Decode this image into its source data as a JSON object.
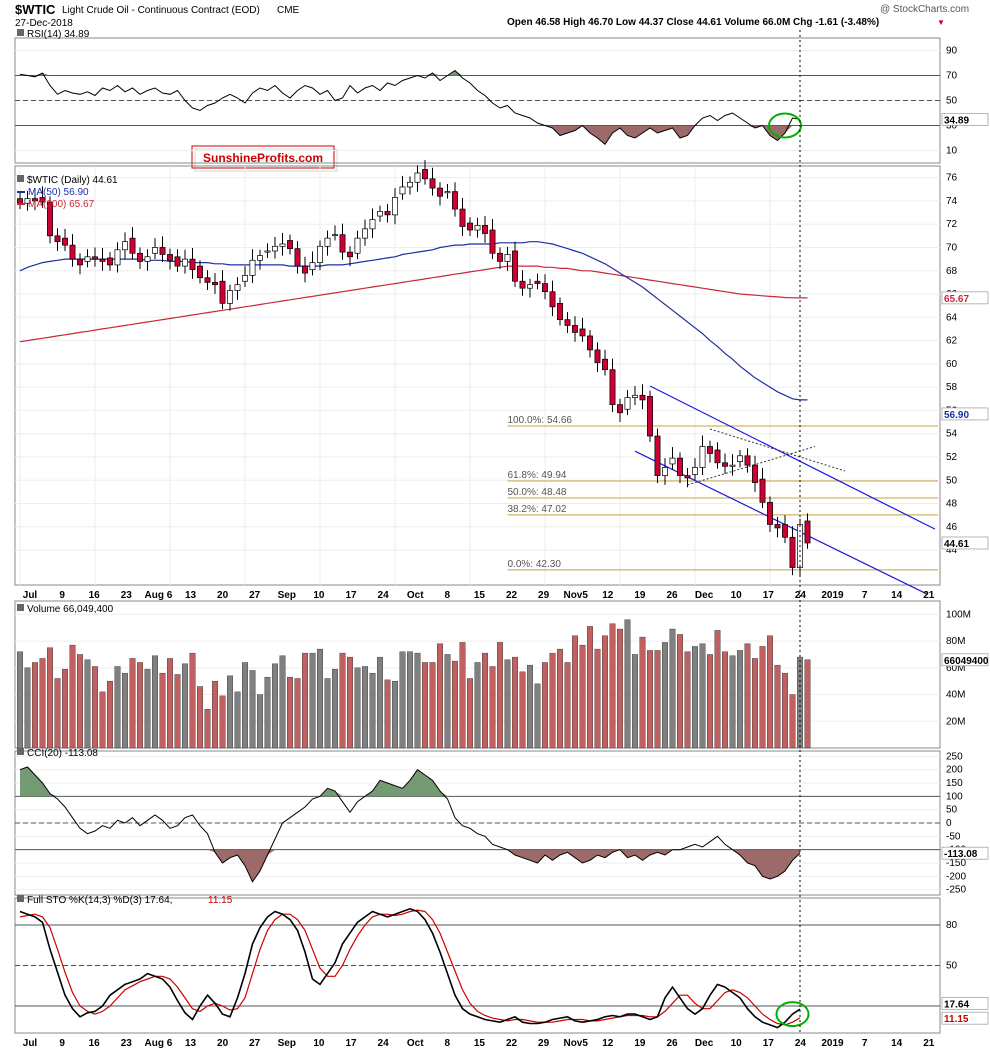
{
  "header": {
    "ticker": "$WTIC",
    "name": "Light Crude Oil - Continuous Contract (EOD)",
    "exchange": "CME",
    "date": "27-Dec-2018",
    "ohlc_text": "Open 46.58  High 46.70  Low 44.37  Close 44.61  Volume 66.0M  Chg -1.61 (-3.48%)",
    "watermark": "@ StockCharts.com"
  },
  "logo": {
    "text": "SunshineProfits.com",
    "color": "#cc0000"
  },
  "colors": {
    "up": "#ffffff",
    "down": "#cc0033",
    "vol_up": "#808080",
    "vol_down": "#c06060",
    "ma50": "#1f2fa0",
    "ma200": "#c8283c",
    "fib": "#c8a040",
    "channel": "#1a1adf",
    "positive_fill": "#5c8a5c",
    "negative_fill": "#8c5050",
    "highlight": "#00b000"
  },
  "chart_data": [
    {
      "panel": "rsi",
      "type": "line",
      "title": "RSI(14) 34.89",
      "ylim": [
        0,
        100
      ],
      "ticks": [
        10,
        30,
        50,
        70,
        90
      ],
      "reference_lines": [
        30,
        50,
        70
      ],
      "last_value_label": "34.89",
      "values": [
        71,
        70,
        69,
        72,
        62,
        55,
        58,
        56,
        55,
        57,
        54,
        60,
        58,
        62,
        57,
        60,
        55,
        58,
        60,
        56,
        55,
        58,
        50,
        44,
        42,
        46,
        48,
        52,
        55,
        52,
        48,
        56,
        60,
        58,
        62,
        56,
        52,
        58,
        62,
        60,
        55,
        58,
        50,
        52,
        62,
        56,
        60,
        62,
        58,
        64,
        62,
        66,
        68,
        70,
        68,
        72,
        66,
        70,
        74,
        68,
        64,
        58,
        54,
        48,
        44,
        46,
        40,
        38,
        36,
        32,
        30,
        28,
        22,
        24,
        26,
        30,
        24,
        20,
        15,
        24,
        28,
        22,
        20,
        24,
        28,
        24,
        26,
        28,
        20,
        22,
        30,
        36,
        38,
        34,
        38,
        40,
        36,
        32,
        28,
        30,
        22,
        18,
        24,
        36,
        34.89
      ]
    },
    {
      "panel": "price",
      "type": "candlestick",
      "title": "$WTIC (Daily) 44.61",
      "ylim": [
        41,
        77
      ],
      "ticks": [
        44,
        46,
        48,
        50,
        52,
        54,
        56,
        58,
        60,
        62,
        64,
        66,
        68,
        70,
        72,
        74,
        76
      ],
      "last_value_label": "44.61",
      "legend": [
        {
          "name": "MA(50) 56.90",
          "color": "#1f2fa0",
          "last_label": "56.90"
        },
        {
          "name": "MA(200) 65.67",
          "color": "#c8283c",
          "last_label": "65.67"
        }
      ],
      "fib_levels": [
        {
          "label": "100.0%: 54.66",
          "value": 54.66
        },
        {
          "label": "61.8%: 49.94",
          "value": 49.94
        },
        {
          "label": "50.0%: 48.48",
          "value": 48.48
        },
        {
          "label": "38.2%: 47.02",
          "value": 47.02
        },
        {
          "label": "0.0%: 42.30",
          "value": 42.3
        }
      ],
      "close": [
        73.8,
        74.2,
        74.0,
        73.9,
        71.0,
        70.5,
        70.2,
        69.0,
        68.5,
        69.2,
        69.0,
        68.8,
        68.5,
        69.8,
        70.5,
        69.5,
        68.8,
        69.2,
        70.0,
        69.4,
        68.9,
        68.4,
        69.0,
        68.1,
        67.4,
        67.0,
        66.8,
        65.2,
        66.3,
        66.8,
        67.6,
        68.9,
        69.3,
        69.7,
        70.1,
        70.3,
        69.9,
        68.4,
        67.8,
        68.7,
        70.1,
        70.8,
        71.1,
        69.6,
        69.2,
        70.8,
        71.6,
        72.4,
        73.1,
        72.8,
        74.3,
        75.2,
        75.6,
        76.4,
        75.9,
        75.1,
        74.4,
        74.8,
        73.3,
        71.8,
        71.5,
        71.9,
        71.2,
        69.5,
        68.8,
        69.4,
        67.1,
        66.5,
        66.8,
        66.9,
        66.2,
        64.9,
        63.8,
        63.3,
        62.7,
        62.4,
        61.2,
        60.1,
        59.5,
        56.5,
        55.8,
        57.1,
        57.3,
        56.9,
        53.8,
        50.4,
        51.1,
        51.9,
        50.4,
        50.2,
        51.1,
        52.9,
        52.3,
        51.5,
        51.2,
        51.3,
        52.1,
        51.3,
        49.8,
        48.1,
        46.2,
        45.9,
        45.1,
        42.5,
        46.2,
        44.61
      ],
      "ma50": [
        68.0,
        68.3,
        68.5,
        68.7,
        68.8,
        68.9,
        69.0,
        69.0,
        69.0,
        69.0,
        69.0,
        69.0,
        69.0,
        69.0,
        69.0,
        69.0,
        69.0,
        68.9,
        68.9,
        68.9,
        68.8,
        68.8,
        68.8,
        68.7,
        68.7,
        68.7,
        68.6,
        68.6,
        68.5,
        68.5,
        68.5,
        68.5,
        68.5,
        68.5,
        68.5,
        68.5,
        68.4,
        68.4,
        68.4,
        68.4,
        68.4,
        68.5,
        68.5,
        68.5,
        68.6,
        68.7,
        68.8,
        68.9,
        69.0,
        69.1,
        69.2,
        69.4,
        69.5,
        69.6,
        69.7,
        69.8,
        70.0,
        70.1,
        70.2,
        70.2,
        70.3,
        70.3,
        70.3,
        70.3,
        70.4,
        70.4,
        70.4,
        70.4,
        70.5,
        70.5,
        70.4,
        70.3,
        70.1,
        69.9,
        69.7,
        69.5,
        69.2,
        68.9,
        68.6,
        68.2,
        67.8,
        67.4,
        67.0,
        66.6,
        66.1,
        65.6,
        65.1,
        64.6,
        64.1,
        63.6,
        63.1,
        62.6,
        62.0,
        61.5,
        60.9,
        60.4,
        59.8,
        59.3,
        58.8,
        58.4,
        58.0,
        57.6,
        57.3,
        57.0,
        56.9,
        56.9
      ],
      "ma200": [
        61.9,
        62.0,
        62.1,
        62.2,
        62.3,
        62.4,
        62.5,
        62.6,
        62.7,
        62.8,
        62.9,
        63.0,
        63.1,
        63.2,
        63.3,
        63.4,
        63.5,
        63.6,
        63.7,
        63.8,
        63.9,
        64.0,
        64.1,
        64.2,
        64.3,
        64.4,
        64.5,
        64.6,
        64.7,
        64.8,
        64.9,
        65.0,
        65.1,
        65.2,
        65.3,
        65.4,
        65.5,
        65.6,
        65.7,
        65.8,
        65.9,
        66.0,
        66.1,
        66.2,
        66.3,
        66.4,
        66.5,
        66.6,
        66.7,
        66.8,
        66.9,
        67.0,
        67.1,
        67.2,
        67.3,
        67.4,
        67.5,
        67.6,
        67.7,
        67.8,
        67.9,
        68.0,
        68.1,
        68.2,
        68.3,
        68.4,
        68.4,
        68.4,
        68.4,
        68.4,
        68.3,
        68.3,
        68.2,
        68.2,
        68.1,
        68.0,
        68.0,
        67.9,
        67.8,
        67.7,
        67.6,
        67.5,
        67.4,
        67.3,
        67.2,
        67.1,
        67.0,
        66.9,
        66.8,
        66.7,
        66.6,
        66.5,
        66.4,
        66.3,
        66.2,
        66.1,
        66.0,
        65.95,
        65.9,
        65.85,
        65.8,
        65.75,
        65.7,
        65.68,
        65.67,
        65.67
      ]
    },
    {
      "panel": "volume",
      "type": "bar",
      "title": "Volume 66,049,400",
      "ylim": [
        0,
        110
      ],
      "unit": "M",
      "ticks": [
        20,
        40,
        60,
        80,
        100
      ],
      "tick_labels": [
        "20M",
        "40M",
        "60M",
        "80M",
        "100M"
      ],
      "last_value_label": "66049400",
      "values": [
        72,
        60,
        64,
        67,
        75,
        52,
        59,
        77,
        70,
        66,
        61,
        42,
        50,
        61,
        56,
        67,
        64,
        59,
        69,
        56,
        67,
        55,
        63,
        71,
        46,
        29,
        50,
        39,
        54,
        42,
        64,
        58,
        40,
        53,
        63,
        69,
        53,
        52,
        71,
        71,
        74,
        52,
        59,
        71,
        68,
        60,
        61,
        56,
        68,
        51,
        50,
        72,
        72,
        71,
        64,
        64,
        78,
        70,
        65,
        79,
        52,
        64,
        71,
        61,
        79,
        66,
        68,
        57,
        62,
        48,
        64,
        71,
        74,
        64,
        84,
        77,
        91,
        74,
        84,
        93,
        89,
        96,
        70,
        83,
        73,
        73,
        79,
        89,
        85,
        72,
        76,
        78,
        70,
        88,
        72,
        69,
        73,
        78,
        67,
        76,
        84,
        62,
        56,
        40,
        68,
        66
      ]
    },
    {
      "panel": "cci",
      "type": "line",
      "title": "CCI(20) -113.08",
      "ylim": [
        -270,
        270
      ],
      "ticks": [
        -250,
        -200,
        -150,
        -100,
        -50,
        0,
        50,
        100,
        150,
        200,
        250
      ],
      "tick_labels": [
        "-250",
        "-200",
        "-150",
        "-100",
        "-50",
        "0",
        "50",
        "100",
        "150",
        "200",
        "250"
      ],
      "reference_lines": [
        -100,
        0,
        100
      ],
      "last_value_label": "-113.08",
      "values": [
        200,
        210,
        180,
        150,
        110,
        90,
        60,
        20,
        -20,
        -40,
        -30,
        -10,
        -20,
        10,
        0,
        20,
        -10,
        10,
        30,
        10,
        -20,
        -10,
        20,
        30,
        -10,
        -40,
        -110,
        -150,
        -130,
        -120,
        -160,
        -220,
        -180,
        -120,
        -60,
        0,
        20,
        40,
        60,
        90,
        100,
        130,
        120,
        80,
        40,
        80,
        100,
        120,
        160,
        150,
        140,
        130,
        160,
        200,
        180,
        160,
        120,
        90,
        20,
        -10,
        -20,
        -40,
        -50,
        -80,
        -90,
        -100,
        -120,
        -130,
        -140,
        -150,
        -120,
        -140,
        -120,
        -110,
        -130,
        -150,
        -140,
        -120,
        -130,
        -110,
        -100,
        -130,
        -120,
        -140,
        -120,
        -110,
        -120,
        -100,
        -100,
        -90,
        -80,
        -90,
        -70,
        -50,
        -80,
        -100,
        -120,
        -150,
        -160,
        -200,
        -210,
        -200,
        -180,
        -140,
        -113.08
      ]
    },
    {
      "panel": "sto",
      "type": "line",
      "title": "Full STO %K(14,3) %D(3) 17.64, 11.15",
      "title_main": "Full STO %K(14,3) %D(3) 17.64,",
      "title_d": "11.15",
      "ylim": [
        0,
        100
      ],
      "ticks": [
        20,
        50,
        80
      ],
      "reference_lines": [
        20,
        50,
        80
      ],
      "last_value_labels": [
        "17.64",
        "11.15"
      ],
      "series": [
        {
          "name": "%K",
          "color": "#000000",
          "values": [
            90,
            88,
            86,
            82,
            62,
            45,
            28,
            18,
            12,
            15,
            16,
            20,
            28,
            32,
            36,
            38,
            40,
            44,
            42,
            40,
            34,
            24,
            15,
            10,
            20,
            28,
            22,
            14,
            12,
            26,
            44,
            66,
            78,
            86,
            90,
            88,
            84,
            76,
            60,
            40,
            36,
            44,
            52,
            66,
            74,
            82,
            86,
            90,
            88,
            86,
            88,
            90,
            92,
            90,
            84,
            74,
            60,
            44,
            28,
            18,
            14,
            12,
            10,
            9,
            8,
            10,
            12,
            8,
            7,
            7,
            8,
            10,
            11,
            12,
            9,
            8,
            9,
            10,
            12,
            13,
            12,
            14,
            14,
            12,
            10,
            12,
            26,
            34,
            26,
            18,
            14,
            18,
            28,
            36,
            34,
            30,
            26,
            18,
            12,
            8,
            6,
            4,
            8,
            14,
            17.64
          ]
        },
        {
          "name": "%D",
          "color": "#cc0000",
          "values": [
            86,
            87,
            88,
            86,
            78,
            62,
            45,
            30,
            20,
            16,
            14,
            16,
            20,
            26,
            32,
            35,
            38,
            40,
            42,
            42,
            40,
            34,
            26,
            18,
            16,
            20,
            22,
            20,
            17,
            18,
            26,
            44,
            62,
            76,
            84,
            88,
            88,
            84,
            76,
            62,
            48,
            42,
            42,
            50,
            62,
            72,
            80,
            86,
            88,
            88,
            87,
            88,
            90,
            91,
            90,
            84,
            74,
            60,
            46,
            32,
            22,
            16,
            13,
            11,
            10,
            9,
            10,
            10,
            9,
            8,
            8,
            8,
            9,
            10,
            10,
            10,
            9,
            9,
            10,
            11,
            12,
            13,
            13,
            13,
            12,
            12,
            16,
            22,
            28,
            28,
            22,
            18,
            18,
            24,
            30,
            32,
            30,
            26,
            20,
            14,
            10,
            7,
            6,
            8,
            11.15
          ]
        }
      ]
    }
  ],
  "x_axis": {
    "labels": [
      "Jul",
      "9",
      "16",
      "23",
      "Aug 6",
      "13",
      "20",
      "27",
      "Sep",
      "10",
      "17",
      "24",
      "Oct",
      "8",
      "15",
      "22",
      "29",
      "Nov5",
      "12",
      "19",
      "26",
      "Dec",
      "10",
      "17",
      "24",
      "2019",
      "7",
      "14",
      "21"
    ]
  }
}
